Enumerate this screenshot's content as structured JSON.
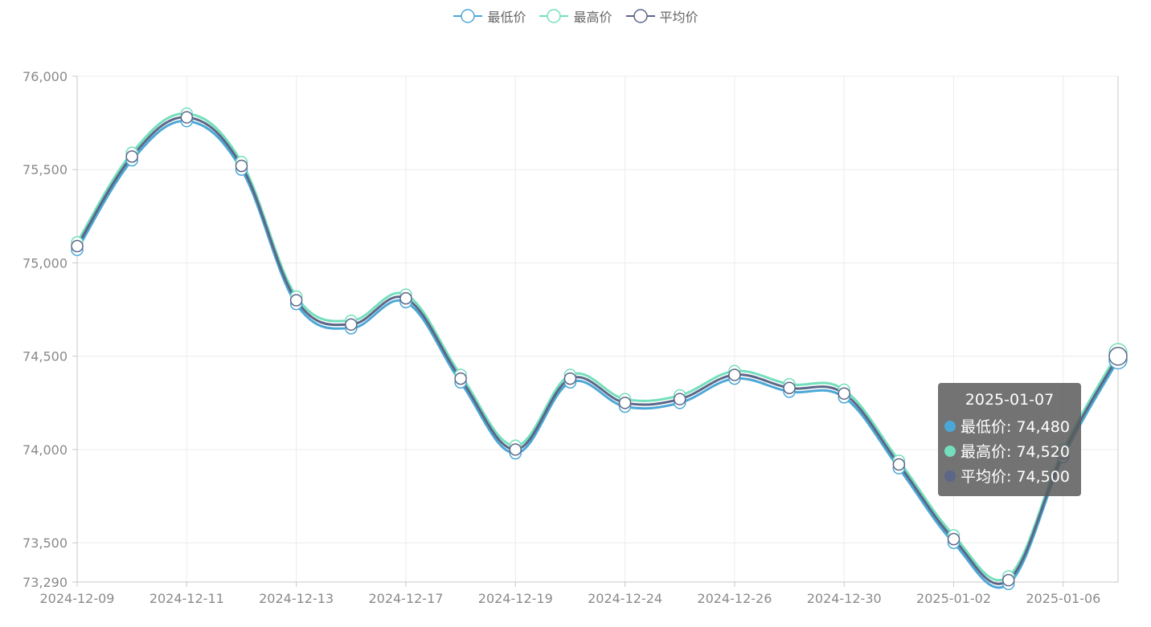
{
  "legend": [
    {
      "name": "最低价",
      "color": "#4ba8d6"
    },
    {
      "name": "最高价",
      "color": "#73dfbd"
    },
    {
      "name": "平均价",
      "color": "#5c6687"
    }
  ],
  "tooltip": {
    "date": "2025-01-07",
    "rows": [
      {
        "label": "最低价: 74,480",
        "color": "#4ba8d6"
      },
      {
        "label": "最高价: 74,520",
        "color": "#73dfbd"
      },
      {
        "label": "平均价: 74,500",
        "color": "#5c6687"
      }
    ]
  },
  "chart_data": {
    "type": "line",
    "x": [
      "2024-12-09",
      "2024-12-10",
      "2024-12-11",
      "2024-12-12",
      "2024-12-13",
      "2024-12-16",
      "2024-12-17",
      "2024-12-18",
      "2024-12-19",
      "2024-12-20",
      "2024-12-24",
      "2024-12-25",
      "2024-12-26",
      "2024-12-27",
      "2024-12-30",
      "2024-12-31",
      "2025-01-02",
      "2025-01-03",
      "2025-01-06",
      "2025-01-07"
    ],
    "x_tick_labels": [
      "2024-12-09",
      "2024-12-11",
      "2024-12-13",
      "2024-12-17",
      "2024-12-19",
      "2024-12-24",
      "2024-12-26",
      "2024-12-30",
      "2025-01-02",
      "2025-01-06"
    ],
    "y_ticks": [
      "73,290",
      "73,500",
      "74,000",
      "74,500",
      "75,000",
      "75,500",
      "76,000"
    ],
    "ylim": [
      73290,
      76000
    ],
    "grid": true,
    "legend_position": "top-center",
    "series": [
      {
        "name": "最低价",
        "color": "#4ba8d6",
        "values": [
          75070,
          75550,
          75760,
          75500,
          74780,
          74650,
          74790,
          74360,
          73980,
          74360,
          74230,
          74250,
          74380,
          74310,
          74280,
          73900,
          73500,
          73280,
          73960,
          74480
        ]
      },
      {
        "name": "最高价",
        "color": "#73dfbd",
        "values": [
          75110,
          75590,
          75800,
          75540,
          74820,
          74690,
          74830,
          74400,
          74020,
          74400,
          74270,
          74290,
          74420,
          74350,
          74320,
          73940,
          73540,
          73320,
          74000,
          74520
        ]
      },
      {
        "name": "平均价",
        "color": "#5c6687",
        "values": [
          75090,
          75570,
          75780,
          75520,
          74800,
          74670,
          74810,
          74380,
          74000,
          74380,
          74250,
          74270,
          74400,
          74330,
          74300,
          73920,
          73520,
          73300,
          73980,
          74500
        ]
      }
    ]
  }
}
